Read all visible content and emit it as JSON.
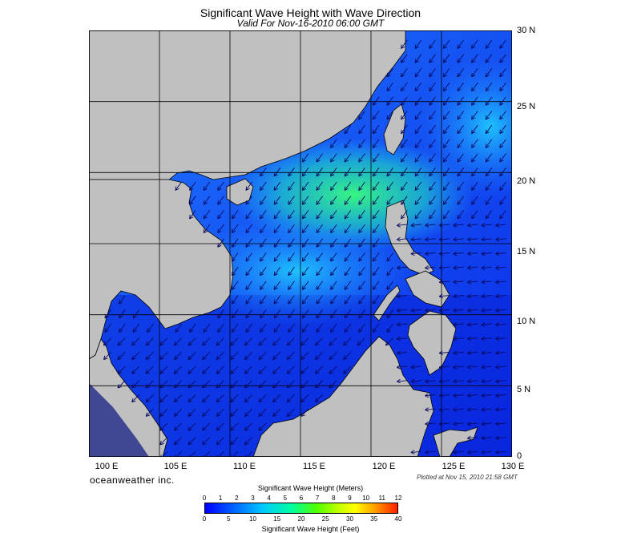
{
  "title": "Significant Wave Height with Wave Direction",
  "subtitle": "Valid For Nov-16-2010 06:00 GMT",
  "lat_labels": [
    "30 N",
    "25 N",
    "20 N",
    "15 N",
    "10 N",
    "5 N",
    "0"
  ],
  "lon_labels": [
    "100 E",
    "105 E",
    "110 E",
    "115 E",
    "120 E",
    "125 E",
    "130 E"
  ],
  "brand": "oceanweather inc.",
  "plotted": "Plotted at Nov 15, 2010 21:58 GMT",
  "colorbar": {
    "title_meters": "Significant Wave Height (Meters)",
    "title_feet": "Significant Wave Height (Feet)",
    "ticks_meters": [
      "0",
      "1",
      "2",
      "3",
      "4",
      "5",
      "6",
      "7",
      "8",
      "9",
      "10",
      "11",
      "12"
    ],
    "ticks_feet": [
      "0",
      "5",
      "10",
      "15",
      "20",
      "25",
      "30",
      "35",
      "40"
    ]
  },
  "colors": {
    "land": "#c0c0c0",
    "deep_blue": "#0a28e6",
    "mid_blue": "#1f7bff",
    "high_green": "#38ff7a"
  }
}
